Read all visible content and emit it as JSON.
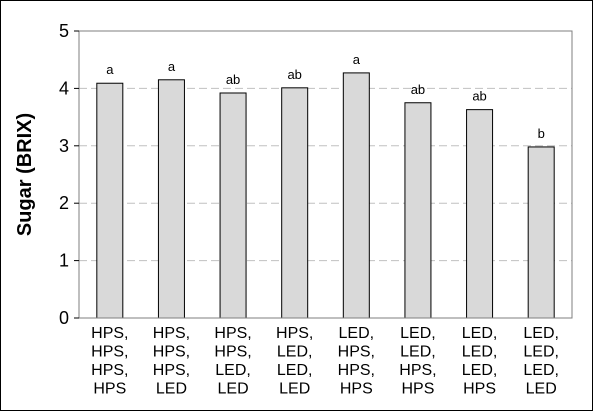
{
  "chart_data": {
    "type": "bar",
    "ylabel": "Sugar (BRIX)",
    "xlabel": "",
    "ylim": [
      0,
      5
    ],
    "yticks": [
      0,
      1,
      2,
      3,
      4,
      5
    ],
    "grid": "horizontal dashed",
    "categories": [
      [
        "HPS,",
        "HPS,",
        "HPS,",
        "HPS"
      ],
      [
        "HPS,",
        "HPS,",
        "HPS,",
        "LED"
      ],
      [
        "HPS,",
        "HPS,",
        "LED,",
        "LED"
      ],
      [
        "HPS,",
        "LED,",
        "LED,",
        "LED"
      ],
      [
        "LED,",
        "HPS,",
        "HPS,",
        "HPS"
      ],
      [
        "LED,",
        "LED,",
        "HPS,",
        "HPS"
      ],
      [
        "LED,",
        "LED,",
        "LED,",
        "HPS"
      ],
      [
        "LED,",
        "LED,",
        "LED,",
        "LED"
      ]
    ],
    "values": [
      4.09,
      4.15,
      3.92,
      4.01,
      4.27,
      3.75,
      3.63,
      2.98
    ],
    "significance_letters": [
      "a",
      "a",
      "ab",
      "ab",
      "a",
      "ab",
      "ab",
      "b"
    ],
    "bar_color": "#d9d9d9",
    "bar_edge_color": "#000000",
    "grid_color": "#c0c0c0"
  }
}
